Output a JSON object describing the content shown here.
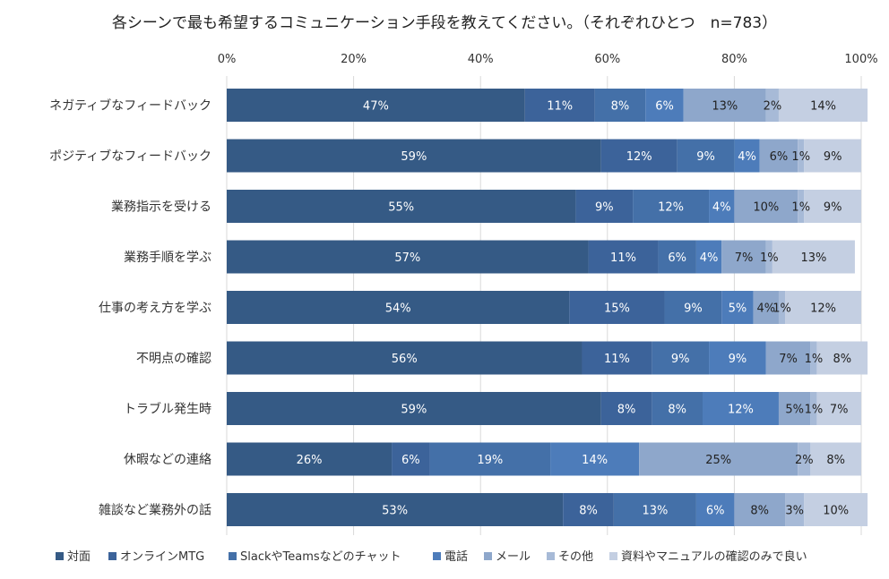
{
  "chart_data": {
    "type": "bar",
    "orientation": "horizontal",
    "stacked": true,
    "title": "各シーンで最も希望するコミュニケーション手段を教えてください。（それぞれひとつ　n=783）",
    "xlim": [
      0,
      100
    ],
    "x_ticks": [
      "0%",
      "20%",
      "40%",
      "60%",
      "80%",
      "100%"
    ],
    "grid": true,
    "legend_position": "bottom",
    "categories": [
      "ネガティブなフィードバック",
      "ポジティブなフィードバック",
      "業務指示を受ける",
      "業務手順を学ぶ",
      "仕事の考え方を学ぶ",
      "不明点の確認",
      "トラブル発生時",
      "休暇などの連絡",
      "雑談など業務外の話"
    ],
    "series": [
      {
        "name": "対面",
        "color": "#355a85",
        "values": [
          47,
          59,
          55,
          57,
          54,
          56,
          59,
          26,
          53
        ]
      },
      {
        "name": "オンラインMTG",
        "color": "#3c639a",
        "values": [
          11,
          12,
          9,
          11,
          15,
          11,
          8,
          6,
          8
        ]
      },
      {
        "name": "SlackやTeamsなどのチャット",
        "color": "#4470a8",
        "values": [
          8,
          9,
          12,
          6,
          9,
          9,
          8,
          19,
          13
        ]
      },
      {
        "name": "電話",
        "color": "#4d7cba",
        "values": [
          6,
          4,
          4,
          4,
          5,
          9,
          12,
          14,
          6
        ]
      },
      {
        "name": "メール",
        "color": "#8ea7cb",
        "values": [
          13,
          6,
          10,
          7,
          4,
          7,
          5,
          25,
          8
        ]
      },
      {
        "name": "その他",
        "color": "#a7bad7",
        "values": [
          2,
          1,
          1,
          1,
          1,
          1,
          1,
          2,
          3
        ]
      },
      {
        "name": "資料やマニュアルの確認のみで良い",
        "color": "#c4cfe2",
        "values": [
          14,
          9,
          9,
          13,
          12,
          8,
          7,
          8,
          10
        ]
      }
    ]
  }
}
